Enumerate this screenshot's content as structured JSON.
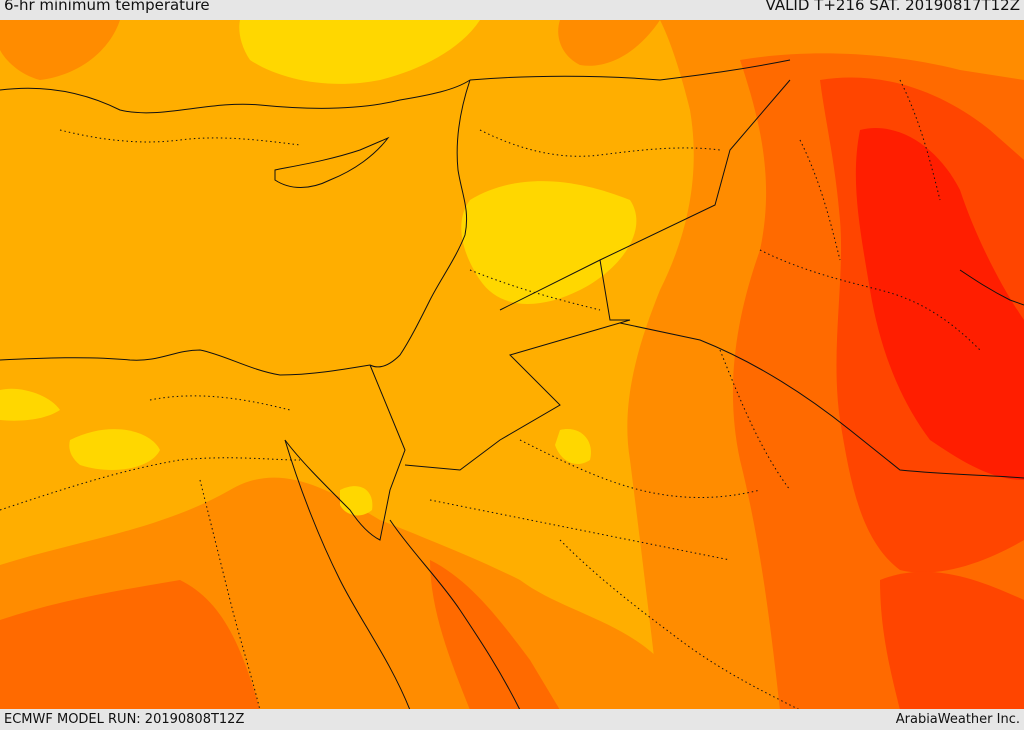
{
  "header": {
    "title": "6-hr minimum temperature",
    "valid": "VALID T+216 SAT. 20190817T12Z"
  },
  "footer": {
    "model_run": "ECMWF MODEL RUN: 20190808T12Z",
    "credit": "ArabiaWeather Inc."
  },
  "palette": {
    "yellow": "#ffd700",
    "light_orange": "#ffae00",
    "orange": "#ff8c00",
    "dark_orange": "#ff6a00",
    "red_orange": "#ff4500",
    "red": "#ff1e00",
    "border": "#111111"
  }
}
